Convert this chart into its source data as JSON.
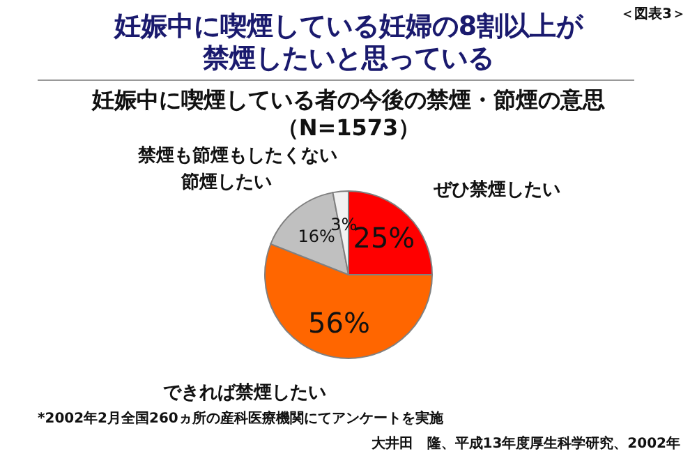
{
  "chart_data": {
    "type": "pie",
    "title": "妊娠中に喫煙している妊婦の8割以上が禁煙したいと思っている",
    "subtitle": "妊娠中に喫煙している者の今後の禁煙・節煙の意思（N=1573）",
    "categories": [
      "ぜひ禁煙したい",
      "できれば禁煙したい",
      "節煙したい",
      "禁煙も節煙もしたくない"
    ],
    "values": [
      25,
      56,
      16,
      3
    ],
    "colors": [
      "#ff0000",
      "#ff6600",
      "#c0c0c0",
      "#f2f2f2"
    ],
    "value_labels": [
      "25%",
      "56%",
      "16%",
      "3%"
    ],
    "annotations": [
      "＜図表3＞",
      "*2002年2月全国260ヵ所の産科医療機関にてアンケートを実施",
      "大井田　隆、平成13年度厚生科学研究、2002年"
    ]
  }
}
